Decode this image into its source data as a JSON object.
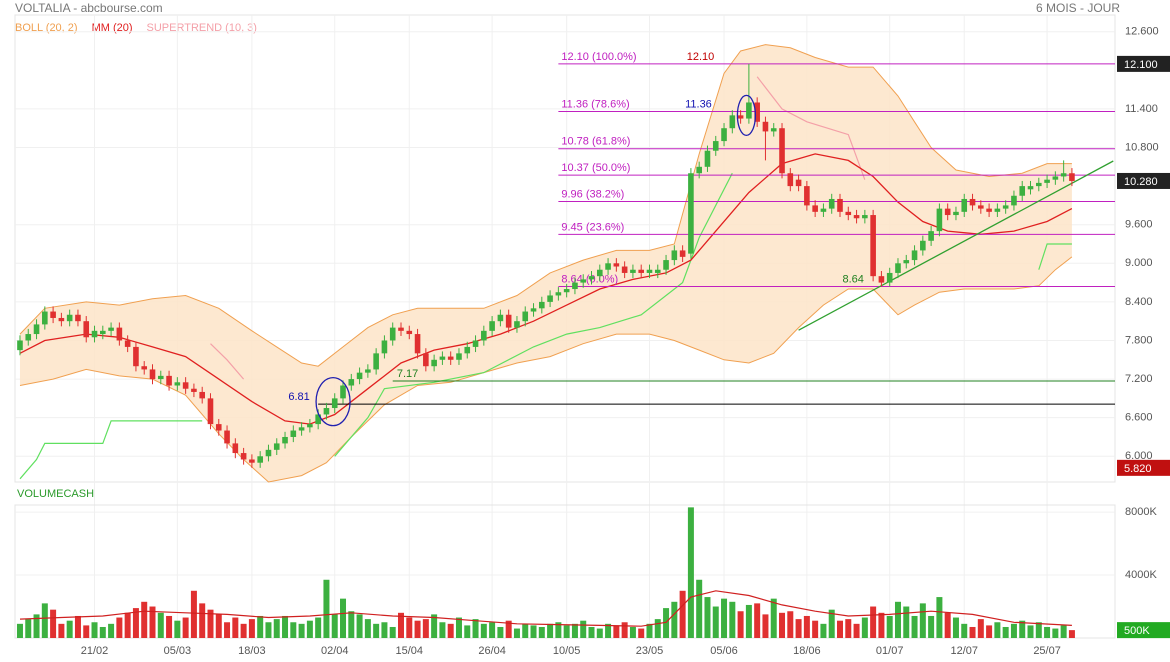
{
  "header": {
    "title": "VOLTALIA - abcbourse.com",
    "period": "6 MOIS - JOUR"
  },
  "legend": [
    {
      "name": "BOLL (20, 2)",
      "color": "#f0a050"
    },
    {
      "name": "MM (20)",
      "color": "#e02020"
    },
    {
      "name": "SUPERTREND (10, 3)",
      "color": "#f4a0a8"
    }
  ],
  "chart_data": [
    {
      "type": "candlestick",
      "xlim": [
        -0.6,
        132.2
      ],
      "ylim": [
        5.6,
        12.86
      ],
      "xticks": [
        {
          "value": 9,
          "label": "21/02"
        },
        {
          "value": 19,
          "label": "05/03"
        },
        {
          "value": 28,
          "label": "18/03"
        },
        {
          "value": 38,
          "label": "02/04"
        },
        {
          "value": 47,
          "label": "15/04"
        },
        {
          "value": 57,
          "label": "26/04"
        },
        {
          "value": 66,
          "label": "10/05"
        },
        {
          "value": 76,
          "label": "23/05"
        },
        {
          "value": 85,
          "label": "05/06"
        },
        {
          "value": 95,
          "label": "18/06"
        },
        {
          "value": 105,
          "label": "01/07"
        },
        {
          "value": 114,
          "label": "12/07"
        },
        {
          "value": 124,
          "label": "25/07"
        }
      ],
      "yticks": [
        {
          "value": 12.6,
          "label": "12.600"
        },
        {
          "value": 11.4,
          "label": "11.400"
        },
        {
          "value": 10.8,
          "label": "10.800"
        },
        {
          "value": 9.6,
          "label": "9.600"
        },
        {
          "value": 9,
          "label": "9.000"
        },
        {
          "value": 8.4,
          "label": "8.400"
        },
        {
          "value": 7.8,
          "label": "7.800"
        },
        {
          "value": 7.2,
          "label": "7.200"
        },
        {
          "value": 6.6,
          "label": "6.600"
        },
        {
          "value": 6,
          "label": "6.000"
        }
      ],
      "grid": true,
      "up_color": "#3cb040",
      "down_color": "#e03030",
      "open": [
        7.65,
        7.8,
        7.9,
        8.05,
        8.25,
        8.15,
        8.1,
        8.2,
        8.1,
        7.85,
        7.9,
        7.95,
        8.0,
        7.8,
        7.7,
        7.4,
        7.35,
        7.2,
        7.25,
        7.1,
        7.15,
        7.05,
        7.0,
        6.9,
        6.5,
        6.4,
        6.2,
        6.05,
        5.95,
        5.9,
        6.0,
        6.1,
        6.2,
        6.3,
        6.4,
        6.45,
        6.5,
        6.65,
        6.75,
        6.9,
        7.1,
        7.2,
        7.3,
        7.35,
        7.6,
        7.8,
        8.0,
        7.95,
        7.9,
        7.6,
        7.4,
        7.5,
        7.55,
        7.5,
        7.6,
        7.7,
        7.8,
        7.95,
        8.1,
        8.2,
        8.0,
        8.1,
        8.25,
        8.3,
        8.4,
        8.5,
        8.55,
        8.6,
        8.7,
        8.75,
        8.8,
        8.9,
        9.0,
        8.95,
        8.85,
        8.9,
        8.85,
        8.85,
        8.9,
        9.05,
        9.2,
        9.15,
        10.4,
        10.5,
        10.75,
        10.9,
        11.1,
        11.3,
        11.25,
        11.5,
        11.2,
        11.05,
        11.1,
        10.4,
        10.3,
        10.2,
        9.9,
        9.8,
        9.85,
        10.0,
        9.8,
        9.75,
        9.7,
        9.75,
        8.8,
        8.7,
        8.85,
        9.0,
        9.05,
        9.2,
        9.35,
        9.5,
        9.85,
        9.75,
        9.8,
        10.0,
        9.9,
        9.85,
        9.8,
        9.85,
        9.9,
        10.05,
        10.15,
        10.2,
        10.25,
        10.3,
        10.35,
        10.4
      ],
      "close": [
        7.8,
        7.9,
        8.05,
        8.25,
        8.15,
        8.1,
        8.2,
        8.1,
        7.85,
        7.95,
        7.95,
        8.0,
        7.8,
        7.7,
        7.4,
        7.35,
        7.2,
        7.25,
        7.1,
        7.15,
        7.05,
        7.0,
        6.9,
        6.5,
        6.4,
        6.2,
        6.05,
        5.95,
        5.9,
        6.0,
        6.1,
        6.2,
        6.3,
        6.4,
        6.45,
        6.5,
        6.65,
        6.75,
        6.9,
        7.1,
        7.2,
        7.3,
        7.35,
        7.6,
        7.8,
        8.0,
        7.95,
        7.9,
        7.6,
        7.4,
        7.5,
        7.55,
        7.5,
        7.6,
        7.7,
        7.8,
        7.95,
        8.1,
        8.2,
        8.0,
        8.1,
        8.25,
        8.3,
        8.4,
        8.5,
        8.55,
        8.6,
        8.7,
        8.75,
        8.8,
        8.9,
        9.0,
        8.95,
        8.85,
        8.9,
        8.85,
        8.9,
        8.9,
        9.05,
        9.2,
        9.1,
        10.4,
        10.5,
        10.75,
        10.9,
        11.1,
        11.3,
        11.25,
        11.5,
        11.2,
        11.05,
        11.1,
        10.4,
        10.2,
        10.2,
        9.9,
        9.8,
        9.85,
        10.0,
        9.8,
        9.75,
        9.7,
        9.75,
        8.8,
        8.7,
        8.85,
        9.0,
        9.05,
        9.2,
        9.35,
        9.5,
        9.85,
        9.75,
        9.8,
        10.0,
        9.9,
        9.85,
        9.8,
        9.85,
        9.9,
        10.05,
        10.2,
        10.2,
        10.25,
        10.3,
        10.35,
        10.4,
        10.28
      ],
      "high": [
        7.88,
        7.98,
        8.13,
        8.33,
        8.33,
        8.23,
        8.28,
        8.28,
        8.18,
        8.03,
        8.03,
        8.08,
        8.08,
        7.88,
        7.78,
        7.48,
        7.43,
        7.33,
        7.33,
        7.23,
        7.23,
        7.13,
        7.08,
        6.98,
        6.58,
        6.48,
        6.28,
        6.13,
        6.03,
        6.08,
        6.18,
        6.28,
        6.38,
        6.48,
        6.53,
        6.58,
        6.73,
        6.83,
        6.98,
        7.18,
        7.28,
        7.38,
        7.43,
        7.68,
        7.88,
        8.08,
        8.08,
        8.03,
        7.98,
        7.68,
        7.58,
        7.63,
        7.63,
        7.68,
        7.78,
        7.88,
        8.03,
        8.18,
        8.28,
        8.28,
        8.18,
        8.33,
        8.38,
        8.48,
        8.58,
        8.63,
        8.68,
        8.78,
        8.83,
        8.88,
        8.98,
        9.08,
        9.08,
        9.03,
        8.98,
        8.98,
        8.98,
        8.98,
        9.13,
        9.28,
        9.28,
        10.48,
        10.58,
        10.83,
        10.98,
        11.18,
        11.38,
        11.38,
        12.1,
        11.58,
        11.28,
        11.18,
        11.18,
        10.48,
        10.38,
        10.28,
        9.98,
        9.93,
        10.08,
        10.08,
        9.88,
        9.83,
        9.83,
        9.83,
        8.88,
        8.93,
        9.08,
        9.13,
        9.28,
        9.43,
        9.58,
        9.93,
        9.93,
        9.88,
        10.08,
        10.08,
        9.98,
        9.93,
        9.93,
        9.98,
        10.13,
        10.28,
        10.28,
        10.33,
        10.38,
        10.43,
        10.6,
        10.48
      ],
      "low": [
        7.57,
        7.72,
        7.82,
        7.97,
        8.07,
        8.02,
        8.02,
        8.02,
        7.77,
        7.77,
        7.82,
        7.87,
        7.72,
        7.62,
        7.32,
        7.27,
        7.12,
        7.12,
        7.02,
        7.02,
        6.97,
        6.92,
        6.82,
        6.42,
        6.32,
        6.12,
        5.97,
        5.87,
        5.82,
        5.82,
        5.92,
        6.02,
        6.12,
        6.22,
        6.32,
        6.37,
        6.42,
        6.57,
        6.67,
        6.82,
        7.02,
        7.12,
        7.22,
        7.27,
        7.52,
        7.72,
        7.87,
        7.82,
        7.52,
        7.32,
        7.32,
        7.42,
        7.42,
        7.42,
        7.52,
        7.62,
        7.72,
        7.87,
        8.02,
        7.92,
        7.92,
        8.02,
        8.17,
        8.22,
        8.32,
        8.42,
        8.47,
        8.52,
        8.62,
        8.67,
        8.72,
        8.82,
        8.87,
        8.77,
        8.77,
        8.77,
        8.77,
        8.77,
        8.82,
        8.97,
        9.02,
        9.07,
        10.32,
        10.42,
        10.67,
        10.82,
        11.02,
        11.17,
        11.17,
        11.12,
        10.6,
        10.97,
        10.32,
        10.12,
        10.12,
        9.82,
        9.72,
        9.72,
        9.77,
        9.72,
        9.67,
        9.62,
        9.62,
        8.72,
        8.64,
        8.64,
        8.77,
        8.92,
        8.97,
        9.12,
        9.27,
        9.42,
        9.67,
        9.67,
        9.72,
        9.82,
        9.77,
        9.72,
        9.72,
        9.77,
        9.82,
        9.97,
        10.07,
        10.12,
        10.17,
        10.22,
        10.27,
        10.2
      ],
      "bollinger": {
        "color": "#f0a050",
        "fill": "#fde4c8",
        "upper": {
          "x": [
            0,
            3,
            8,
            12,
            16,
            20,
            24,
            28,
            31,
            34,
            36,
            39,
            42,
            45,
            48,
            52,
            56,
            60,
            64,
            68,
            72,
            76,
            79,
            82,
            85,
            87,
            90,
            93,
            96,
            100,
            103,
            106,
            108,
            110,
            113,
            117,
            121,
            124,
            127
          ],
          "values": [
            7.9,
            8.3,
            8.4,
            8.35,
            8.45,
            8.5,
            8.3,
            7.95,
            7.7,
            7.45,
            7.4,
            7.7,
            8.0,
            8.2,
            8.3,
            8.3,
            8.3,
            8.5,
            8.85,
            9.05,
            9.2,
            9.2,
            9.3,
            10.7,
            11.95,
            12.3,
            12.4,
            12.35,
            12.2,
            12.05,
            12.05,
            11.6,
            11.2,
            10.8,
            10.45,
            10.35,
            10.4,
            10.55,
            10.55
          ]
        },
        "lower": {
          "x": [
            0,
            4,
            8,
            12,
            16,
            20,
            24,
            27,
            30,
            34,
            37,
            40,
            44,
            48,
            52,
            56,
            60,
            64,
            68,
            72,
            76,
            79,
            82,
            85,
            88,
            91,
            94,
            97,
            100,
            103,
            106,
            108,
            111,
            114,
            117,
            120,
            123,
            125,
            127
          ],
          "values": [
            7.1,
            7.2,
            7.35,
            7.25,
            7.2,
            6.95,
            6.35,
            5.95,
            5.6,
            5.7,
            5.9,
            6.3,
            6.8,
            7.1,
            7.15,
            7.3,
            7.45,
            7.55,
            7.75,
            7.9,
            7.9,
            7.8,
            7.65,
            7.5,
            7.45,
            7.6,
            8.0,
            8.35,
            8.6,
            8.6,
            8.2,
            8.35,
            8.55,
            8.6,
            8.6,
            8.6,
            8.65,
            8.9,
            9.1
          ]
        }
      },
      "mm": {
        "color": "#e02020",
        "x": [
          0,
          3,
          8,
          12,
          16,
          20,
          24,
          28,
          32,
          35,
          38,
          42,
          46,
          50,
          54,
          58,
          62,
          66,
          70,
          74,
          78,
          81,
          84,
          88,
          92,
          96,
          100,
          103,
          106,
          109,
          112,
          116,
          120,
          124,
          127
        ],
        "values": [
          7.6,
          7.8,
          7.9,
          7.85,
          7.7,
          7.55,
          7.2,
          6.85,
          6.55,
          6.5,
          6.65,
          7.05,
          7.45,
          7.65,
          7.75,
          7.9,
          8.1,
          8.35,
          8.6,
          8.75,
          8.85,
          9.05,
          9.5,
          10.1,
          10.55,
          10.7,
          10.6,
          10.35,
          9.95,
          9.65,
          9.5,
          9.45,
          9.5,
          9.65,
          9.85
        ]
      },
      "supertrend": [
        {
          "color": "#60e060",
          "x": [
            0,
            2,
            3,
            10,
            11,
            22,
            23,
            38,
            42,
            44,
            50,
            56,
            62,
            66,
            70,
            75,
            80,
            82,
            86,
            87,
            123,
            124,
            127
          ],
          "values": [
            5.65,
            5.95,
            6.2,
            6.2,
            6.55,
            6.55,
            null,
            6.0,
            6.6,
            7.05,
            7.15,
            7.3,
            7.7,
            7.9,
            8.0,
            8.2,
            8.7,
            9.4,
            10.4,
            null,
            8.9,
            9.3,
            9.3
          ]
        },
        {
          "color": "#f4a0a8",
          "x": [
            23,
            25,
            27,
            28,
            89,
            92,
            95,
            100,
            102,
            104
          ],
          "values": [
            7.75,
            7.5,
            7.2,
            null,
            11.9,
            11.4,
            11.2,
            11.0,
            10.3,
            null
          ]
        }
      ],
      "fib_color": "#c020c0",
      "fib_from": 65,
      "fib_levels": [
        {
          "value": 12.1,
          "label": "12.10 (100.0%)"
        },
        {
          "value": 11.36,
          "label": "11.36 (78.6%)"
        },
        {
          "value": 10.78,
          "label": "10.78 (61.8%)"
        },
        {
          "value": 10.37,
          "label": "10.37 (50.0%)"
        },
        {
          "value": 9.96,
          "label": "9.96 (38.2%)"
        },
        {
          "value": 9.45,
          "label": "9.45 (23.6%)"
        },
        {
          "value": 8.64,
          "label": "8.64 (0.0%)"
        }
      ],
      "annotations": [
        {
          "x": 80.5,
          "value": 12.1,
          "label": "12.10",
          "color": "#c00000"
        },
        {
          "x": 80.3,
          "value": 11.36,
          "label": "11.36",
          "color": "#1010b0"
        },
        {
          "x": 99.3,
          "value": 8.64,
          "label": "8.64",
          "color": "#208020"
        },
        {
          "x": 45.5,
          "value": 7.17,
          "label": "7.17",
          "color": "#208020",
          "from": 45
        },
        {
          "x": 32.4,
          "value": 6.81,
          "label": "6.81",
          "color": "#1010b0",
          "from": 36
        }
      ],
      "trendline": {
        "color": "#30a030",
        "x": [
          94,
          132
        ],
        "values": [
          7.96,
          10.59
        ]
      },
      "price_markers": [
        {
          "value": 12.1,
          "label": "12.100",
          "color": "#222222"
        },
        {
          "value": 10.28,
          "label": "10.280",
          "color": "#222222"
        },
        {
          "value": 5.82,
          "label": "5.820",
          "color": "#c01010"
        }
      ]
    },
    {
      "type": "volume",
      "title": "VOLUMECASH",
      "xlim": [
        -0.6,
        132.2
      ],
      "ylim": [
        0,
        8450
      ],
      "yticks": [
        {
          "value": 4000,
          "label": "4000K"
        },
        {
          "value": 8000,
          "label": "8000K"
        }
      ],
      "values": [
        900,
        1200,
        1500,
        2200,
        1800,
        900,
        1100,
        1400,
        800,
        1000,
        700,
        900,
        1300,
        1600,
        1900,
        2300,
        2000,
        1600,
        1400,
        1100,
        1300,
        3000,
        2200,
        1800,
        1500,
        1000,
        1300,
        900,
        1200,
        1400,
        1000,
        1200,
        1400,
        1000,
        900,
        1100,
        1300,
        3700,
        1500,
        2500,
        1700,
        1500,
        1200,
        900,
        1000,
        700,
        1600,
        1300,
        1100,
        1200,
        1500,
        1000,
        900,
        1300,
        800,
        1200,
        900,
        1000,
        700,
        1100,
        600,
        900,
        800,
        700,
        900,
        1000,
        800,
        900,
        1100,
        700,
        600,
        900,
        800,
        1000,
        700,
        600,
        900,
        1200,
        1900,
        2300,
        3000,
        8300,
        3700,
        2600,
        2000,
        2500,
        2300,
        1700,
        2100,
        2200,
        1500,
        2500,
        1600,
        1700,
        1200,
        1400,
        1100,
        900,
        1800,
        1100,
        1200,
        900,
        1300,
        2000,
        1600,
        1400,
        2300,
        2000,
        1400,
        2200,
        1400,
        2600,
        1600,
        1300,
        900,
        700,
        1200,
        800,
        1000,
        700,
        900,
        1100,
        800,
        1000,
        700,
        600,
        800,
        500
      ],
      "ma": {
        "color": "#d02020",
        "x": [
          0,
          5,
          10,
          15,
          20,
          25,
          30,
          35,
          40,
          45,
          50,
          55,
          60,
          65,
          70,
          75,
          78,
          81,
          84,
          88,
          92,
          96,
          100,
          105,
          110,
          115,
          120,
          127
        ],
        "values": [
          1200,
          1300,
          1400,
          1700,
          1600,
          1500,
          1300,
          1400,
          1600,
          1400,
          1300,
          1100,
          900,
          850,
          800,
          750,
          1000,
          2600,
          3000,
          2700,
          2100,
          1700,
          1400,
          1500,
          1700,
          1500,
          1000,
          800
        ]
      },
      "marker": {
        "value": 500,
        "label": "500K",
        "color": "#22aa22"
      }
    }
  ]
}
